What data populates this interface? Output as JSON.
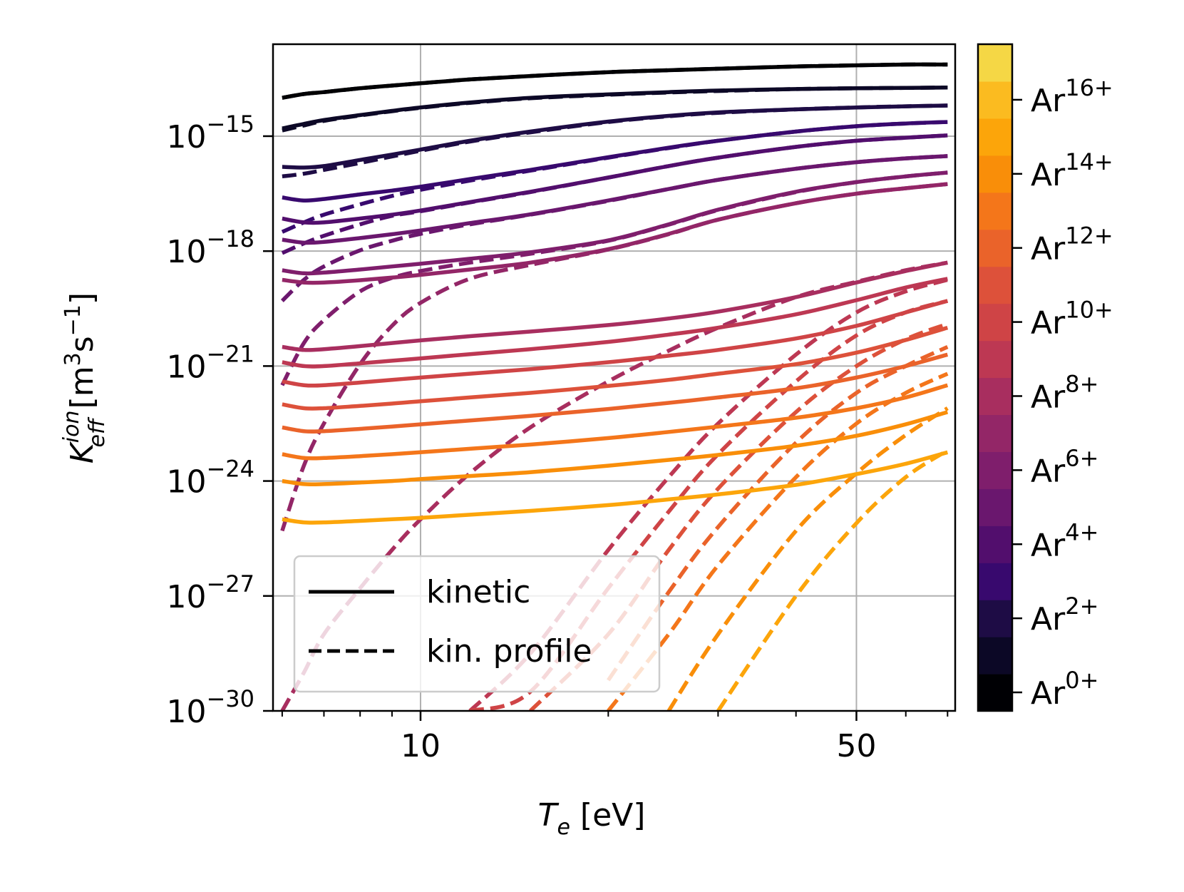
{
  "chart_data": {
    "type": "line",
    "title": "",
    "xlabel": {
      "main": "T",
      "sub": "e",
      "unit": " [eV]"
    },
    "ylabel": {
      "main": "K",
      "sup": "ion",
      "sub": "eff",
      "unit_open": " [m",
      "unit_pow1": "3",
      "unit_mid": "s",
      "unit_pow2": "−1",
      "unit_close": "]"
    },
    "x_scale": "log",
    "y_scale": "log",
    "xlim": [
      5.8,
      72
    ],
    "ylim_log10": [
      -30,
      -12.6
    ],
    "x_ticks": [
      {
        "value": 10,
        "label": "10"
      },
      {
        "value": 50,
        "label": "50"
      }
    ],
    "y_ticks": [
      {
        "exp": -15,
        "base": "10",
        "sup": "−15"
      },
      {
        "exp": -18,
        "base": "10",
        "sup": "−18"
      },
      {
        "exp": -21,
        "base": "10",
        "sup": "−21"
      },
      {
        "exp": -24,
        "base": "10",
        "sup": "−24"
      },
      {
        "exp": -27,
        "base": "10",
        "sup": "−27"
      },
      {
        "exp": -30,
        "base": "10",
        "sup": "−30"
      }
    ],
    "grid": true,
    "legend": {
      "position": "lower-left",
      "entries": [
        {
          "label": "kinetic",
          "style": "solid"
        },
        {
          "label": "kin. profile",
          "style": "dashed"
        }
      ]
    },
    "colorbar": {
      "levels": 18,
      "colors": [
        "#000004",
        "#0c0826",
        "#1e0c45",
        "#38096e",
        "#520e6d",
        "#6a176e",
        "#7f1e6c",
        "#932667",
        "#a82e5f",
        "#bd3853",
        "#cf4446",
        "#dd513a",
        "#ea632a",
        "#f4761a",
        "#f98e09",
        "#fca50a",
        "#fbbb20",
        "#f5d745"
      ],
      "ticks": [
        {
          "index": 0,
          "base": "Ar",
          "sup": "0+"
        },
        {
          "index": 2,
          "base": "Ar",
          "sup": "2+"
        },
        {
          "index": 4,
          "base": "Ar",
          "sup": "4+"
        },
        {
          "index": 6,
          "base": "Ar",
          "sup": "6+"
        },
        {
          "index": 8,
          "base": "Ar",
          "sup": "8+"
        },
        {
          "index": 10,
          "base": "Ar",
          "sup": "10+"
        },
        {
          "index": 12,
          "base": "Ar",
          "sup": "12+"
        },
        {
          "index": 14,
          "base": "Ar",
          "sup": "14+"
        },
        {
          "index": 16,
          "base": "Ar",
          "sup": "16+"
        }
      ]
    },
    "x_samples": [
      6,
      6.5,
      7,
      8,
      9,
      10,
      12,
      15,
      20,
      25,
      30,
      40,
      50,
      60,
      70
    ],
    "series": [
      {
        "name": "Ar0+ kinetic",
        "style": "solid",
        "color_index": 0,
        "log10_y": [
          -14.0,
          -13.9,
          -13.85,
          -13.75,
          -13.68,
          -13.62,
          -13.52,
          -13.43,
          -13.33,
          -13.28,
          -13.24,
          -13.18,
          -13.15,
          -13.13,
          -13.13
        ]
      },
      {
        "name": "Ar0+ kin. profile",
        "style": "dashed",
        "color_index": 0,
        "log10_y": [
          -14.0,
          -13.9,
          -13.85,
          -13.75,
          -13.68,
          -13.62,
          -13.52,
          -13.43,
          -13.33,
          -13.28,
          -13.24,
          -13.18,
          -13.15,
          -13.13,
          -13.13
        ]
      },
      {
        "name": "Ar1+ kinetic",
        "style": "solid",
        "color_index": 1,
        "log10_y": [
          -14.8,
          -14.68,
          -14.58,
          -14.45,
          -14.34,
          -14.25,
          -14.12,
          -14.0,
          -13.91,
          -13.85,
          -13.81,
          -13.77,
          -13.75,
          -13.74,
          -13.73
        ]
      },
      {
        "name": "Ar1+ kin. profile",
        "style": "dashed",
        "color_index": 1,
        "log10_y": [
          -14.85,
          -14.72,
          -14.6,
          -14.46,
          -14.35,
          -14.26,
          -14.13,
          -14.01,
          -13.92,
          -13.86,
          -13.82,
          -13.77,
          -13.75,
          -13.74,
          -13.73
        ]
      },
      {
        "name": "Ar2+ kinetic",
        "style": "solid",
        "color_index": 2,
        "log10_y": [
          -15.8,
          -15.82,
          -15.78,
          -15.62,
          -15.48,
          -15.35,
          -15.12,
          -14.88,
          -14.62,
          -14.47,
          -14.38,
          -14.3,
          -14.25,
          -14.22,
          -14.2
        ]
      },
      {
        "name": "Ar2+ kin. profile",
        "style": "dashed",
        "color_index": 2,
        "log10_y": [
          -16.05,
          -15.98,
          -15.88,
          -15.7,
          -15.53,
          -15.38,
          -15.14,
          -14.9,
          -14.63,
          -14.48,
          -14.39,
          -14.3,
          -14.25,
          -14.22,
          -14.2
        ]
      },
      {
        "name": "Ar3+ kinetic",
        "style": "solid",
        "color_index": 3,
        "log10_y": [
          -16.6,
          -16.68,
          -16.64,
          -16.52,
          -16.42,
          -16.32,
          -16.12,
          -15.88,
          -15.55,
          -15.3,
          -15.12,
          -14.88,
          -14.74,
          -14.67,
          -14.63
        ]
      },
      {
        "name": "Ar3+ kin. profile",
        "style": "dashed",
        "color_index": 3,
        "log10_y": [
          -17.5,
          -17.25,
          -17.05,
          -16.78,
          -16.56,
          -16.4,
          -16.16,
          -15.9,
          -15.56,
          -15.31,
          -15.12,
          -14.88,
          -14.74,
          -14.67,
          -14.63
        ]
      },
      {
        "name": "Ar4+ kinetic",
        "style": "solid",
        "color_index": 4,
        "log10_y": [
          -17.15,
          -17.25,
          -17.25,
          -17.15,
          -17.05,
          -16.94,
          -16.72,
          -16.45,
          -16.08,
          -15.78,
          -15.56,
          -15.28,
          -15.12,
          -15.04,
          -14.98
        ]
      },
      {
        "name": "Ar4+ kin. profile",
        "style": "dashed",
        "color_index": 4,
        "log10_y": [
          -18.05,
          -17.8,
          -17.6,
          -17.3,
          -17.08,
          -16.96,
          -16.73,
          -16.46,
          -16.08,
          -15.78,
          -15.56,
          -15.28,
          -15.12,
          -15.04,
          -14.98
        ]
      },
      {
        "name": "Ar5+ kinetic",
        "style": "solid",
        "color_index": 5,
        "log10_y": [
          -17.7,
          -17.78,
          -17.76,
          -17.66,
          -17.56,
          -17.46,
          -17.27,
          -17.04,
          -16.68,
          -16.38,
          -16.14,
          -15.85,
          -15.68,
          -15.58,
          -15.52
        ]
      },
      {
        "name": "Ar5+ kin. profile",
        "style": "dashed",
        "color_index": 5,
        "log10_y": [
          -19.3,
          -18.75,
          -18.4,
          -17.98,
          -17.73,
          -17.55,
          -17.3,
          -17.05,
          -16.69,
          -16.38,
          -16.14,
          -15.85,
          -15.68,
          -15.58,
          -15.52
        ]
      },
      {
        "name": "Ar6+ kinetic",
        "style": "solid",
        "color_index": 6,
        "log10_y": [
          -18.5,
          -18.58,
          -18.56,
          -18.48,
          -18.4,
          -18.33,
          -18.2,
          -18.03,
          -17.72,
          -17.3,
          -16.92,
          -16.45,
          -16.2,
          -16.05,
          -15.95
        ]
      },
      {
        "name": "Ar6+ kin. profile",
        "style": "dashed",
        "color_index": 6,
        "log10_y": [
          -21.5,
          -20.4,
          -19.8,
          -19.05,
          -18.7,
          -18.52,
          -18.3,
          -18.07,
          -17.73,
          -17.31,
          -16.93,
          -16.46,
          -16.2,
          -16.05,
          -15.95
        ]
      },
      {
        "name": "Ar7+ kinetic",
        "style": "solid",
        "color_index": 7,
        "log10_y": [
          -18.75,
          -18.82,
          -18.82,
          -18.76,
          -18.69,
          -18.62,
          -18.48,
          -18.3,
          -17.95,
          -17.55,
          -17.18,
          -16.75,
          -16.5,
          -16.36,
          -16.25
        ]
      },
      {
        "name": "Ar7+ kin. profile",
        "style": "dashed",
        "color_index": 7,
        "log10_y": [
          -25.3,
          -23.6,
          -22.5,
          -20.95,
          -19.95,
          -19.35,
          -18.72,
          -18.36,
          -17.96,
          -17.56,
          -17.18,
          -16.75,
          -16.5,
          -16.36,
          -16.25
        ]
      },
      {
        "name": "Ar8+ kinetic",
        "style": "solid",
        "color_index": 8,
        "log10_y": [
          -20.5,
          -20.58,
          -20.56,
          -20.48,
          -20.4,
          -20.33,
          -20.22,
          -20.1,
          -19.93,
          -19.76,
          -19.58,
          -19.2,
          -18.82,
          -18.52,
          -18.3
        ]
      },
      {
        "name": "Ar8+ kin. profile",
        "style": "dashed",
        "color_index": 8,
        "log10_y": [
          -30.0,
          -29.0,
          -28.0,
          -26.8,
          -25.8,
          -25.0,
          -23.8,
          -22.6,
          -21.4,
          -20.6,
          -20.0,
          -19.2,
          -18.8,
          -18.5,
          -18.3
        ]
      },
      {
        "name": "Ar9+ kinetic",
        "style": "solid",
        "color_index": 9,
        "log10_y": [
          -20.9,
          -21.0,
          -21.0,
          -20.93,
          -20.86,
          -20.8,
          -20.69,
          -20.56,
          -20.37,
          -20.18,
          -20.0,
          -19.65,
          -19.28,
          -18.95,
          -18.72
        ]
      },
      {
        "name": "Ar9+ kin. profile",
        "style": "dashed",
        "color_index": 9,
        "log10_y": [
          null,
          null,
          null,
          null,
          null,
          null,
          -30.0,
          -28.5,
          -25.8,
          -23.9,
          -22.5,
          -20.7,
          -19.6,
          -19.05,
          -18.75
        ]
      },
      {
        "name": "Ar10+ kinetic",
        "style": "solid",
        "color_index": 10,
        "log10_y": [
          -21.4,
          -21.5,
          -21.5,
          -21.43,
          -21.36,
          -21.3,
          -21.2,
          -21.08,
          -20.9,
          -20.73,
          -20.58,
          -20.28,
          -19.95,
          -19.6,
          -19.3
        ]
      },
      {
        "name": "Ar10+ kin. profile",
        "style": "dashed",
        "color_index": 10,
        "log10_y": [
          null,
          null,
          null,
          null,
          null,
          null,
          -30.0,
          -29.5,
          -26.8,
          -24.8,
          -23.3,
          -21.4,
          -20.2,
          -19.6,
          -19.3
        ]
      },
      {
        "name": "Ar11+ kinetic",
        "style": "solid",
        "color_index": 11,
        "log10_y": [
          -22.0,
          -22.1,
          -22.1,
          -22.04,
          -21.98,
          -21.92,
          -21.82,
          -21.7,
          -21.52,
          -21.36,
          -21.2,
          -20.95,
          -20.65,
          -20.32,
          -20.0
        ]
      },
      {
        "name": "Ar11+ kin. profile",
        "style": "dashed",
        "color_index": 11,
        "log10_y": [
          null,
          null,
          null,
          null,
          null,
          null,
          null,
          -30.0,
          -28.0,
          -25.8,
          -24.2,
          -22.2,
          -21.0,
          -20.3,
          -19.9
        ]
      },
      {
        "name": "Ar12+ kinetic",
        "style": "solid",
        "color_index": 12,
        "log10_y": [
          -22.6,
          -22.7,
          -22.7,
          -22.64,
          -22.58,
          -22.52,
          -22.42,
          -22.3,
          -22.12,
          -21.96,
          -21.82,
          -21.58,
          -21.3,
          -21.0,
          -20.7
        ]
      },
      {
        "name": "Ar12+ kin. profile",
        "style": "dashed",
        "color_index": 12,
        "log10_y": [
          null,
          null,
          null,
          null,
          null,
          null,
          null,
          null,
          -29.2,
          -26.9,
          -25.2,
          -23.0,
          -21.7,
          -21.0,
          -20.5
        ]
      },
      {
        "name": "Ar13+ kinetic",
        "style": "solid",
        "color_index": 13,
        "log10_y": [
          -23.3,
          -23.4,
          -23.4,
          -23.35,
          -23.3,
          -23.25,
          -23.16,
          -23.05,
          -22.88,
          -22.72,
          -22.58,
          -22.35,
          -22.1,
          -21.82,
          -21.5
        ]
      },
      {
        "name": "Ar13+ kin. profile",
        "style": "dashed",
        "color_index": 13,
        "log10_y": [
          null,
          null,
          null,
          null,
          null,
          null,
          null,
          null,
          -30.0,
          -28.0,
          -26.2,
          -23.9,
          -22.5,
          -21.7,
          -21.2
        ]
      },
      {
        "name": "Ar14+ kinetic",
        "style": "solid",
        "color_index": 14,
        "log10_y": [
          -24.0,
          -24.08,
          -24.08,
          -24.04,
          -24.0,
          -23.95,
          -23.87,
          -23.77,
          -23.6,
          -23.45,
          -23.32,
          -23.08,
          -22.82,
          -22.52,
          -22.2
        ]
      },
      {
        "name": "Ar14+ kin. profile",
        "style": "dashed",
        "color_index": 14,
        "log10_y": [
          null,
          null,
          null,
          null,
          null,
          null,
          null,
          null,
          null,
          -30.0,
          -28.0,
          -25.3,
          -23.8,
          -22.8,
          -22.1
        ]
      },
      {
        "name": "Ar15+ kinetic",
        "style": "solid",
        "color_index": 15,
        "log10_y": [
          -25.0,
          -25.08,
          -25.08,
          -25.04,
          -25.0,
          -24.96,
          -24.88,
          -24.78,
          -24.63,
          -24.48,
          -24.35,
          -24.1,
          -23.82,
          -23.55,
          -23.25
        ]
      },
      {
        "name": "Ar15+ kin. profile",
        "style": "dashed",
        "color_index": 15,
        "log10_y": [
          null,
          null,
          null,
          null,
          null,
          null,
          null,
          null,
          null,
          null,
          -30.0,
          -27.0,
          -25.1,
          -23.9,
          -23.2
        ]
      }
    ]
  }
}
